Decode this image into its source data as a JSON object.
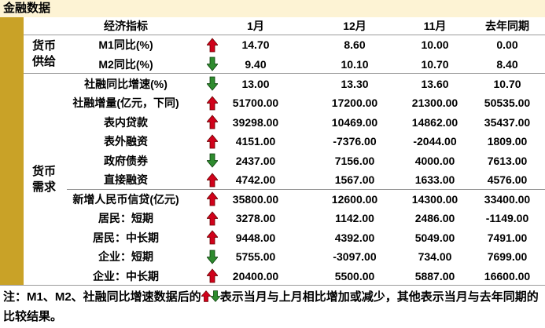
{
  "title": "金融数据",
  "header": [
    "经济指标",
    "1月",
    "12月",
    "11月",
    "去年同期"
  ],
  "groups": [
    {
      "label": "货币供给",
      "sections": [
        [
          {
            "label": "M1同比(%)",
            "trend": "up",
            "values": [
              "14.70",
              "8.60",
              "10.00",
              "0.00"
            ]
          },
          {
            "label": "M2同比(%)",
            "trend": "down",
            "values": [
              "9.40",
              "10.10",
              "10.70",
              "8.40"
            ]
          }
        ]
      ]
    },
    {
      "label": "货币需求",
      "sections": [
        [
          {
            "label": "社融同比增速(%)",
            "trend": "down",
            "values": [
              "13.00",
              "13.30",
              "13.60",
              "10.70"
            ]
          },
          {
            "label": "社融增量(亿元，下同)",
            "trend": "up",
            "values": [
              "51700.00",
              "17200.00",
              "21300.00",
              "50535.00"
            ]
          },
          {
            "label": "表内贷款",
            "trend": "up",
            "values": [
              "39298.00",
              "10469.00",
              "14862.00",
              "35437.00"
            ]
          },
          {
            "label": "表外融资",
            "trend": "up",
            "values": [
              "4151.00",
              "-7376.00",
              "-2044.00",
              "1809.00"
            ]
          },
          {
            "label": "政府债券",
            "trend": "down",
            "values": [
              "2437.00",
              "7156.00",
              "4000.00",
              "7613.00"
            ]
          },
          {
            "label": "直接融资",
            "trend": "up",
            "values": [
              "4742.00",
              "1567.00",
              "1633.00",
              "4576.00"
            ]
          }
        ],
        [
          {
            "label": "新增人民币信贷(亿元)",
            "trend": "up",
            "values": [
              "35800.00",
              "12600.00",
              "14300.00",
              "33400.00"
            ]
          },
          {
            "label": "居民：短期",
            "trend": "up",
            "values": [
              "3278.00",
              "1142.00",
              "2486.00",
              "-1149.00"
            ]
          },
          {
            "label": "居民：中长期",
            "trend": "up",
            "values": [
              "9448.00",
              "4392.00",
              "5049.00",
              "7491.00"
            ]
          },
          {
            "label": "企业：短期",
            "trend": "down",
            "values": [
              "5755.00",
              "-3097.00",
              "734.00",
              "7699.00"
            ]
          },
          {
            "label": "企业：中长期",
            "trend": "up",
            "values": [
              "20400.00",
              "5500.00",
              "5887.00",
              "16600.00"
            ]
          }
        ]
      ]
    }
  ],
  "footnote": {
    "before": "注：M1、M2、社融同比增速数据后的",
    "after": "表示当月与上月相比增加或减少，其他表示当月与去年同期的比较结果。"
  }
}
